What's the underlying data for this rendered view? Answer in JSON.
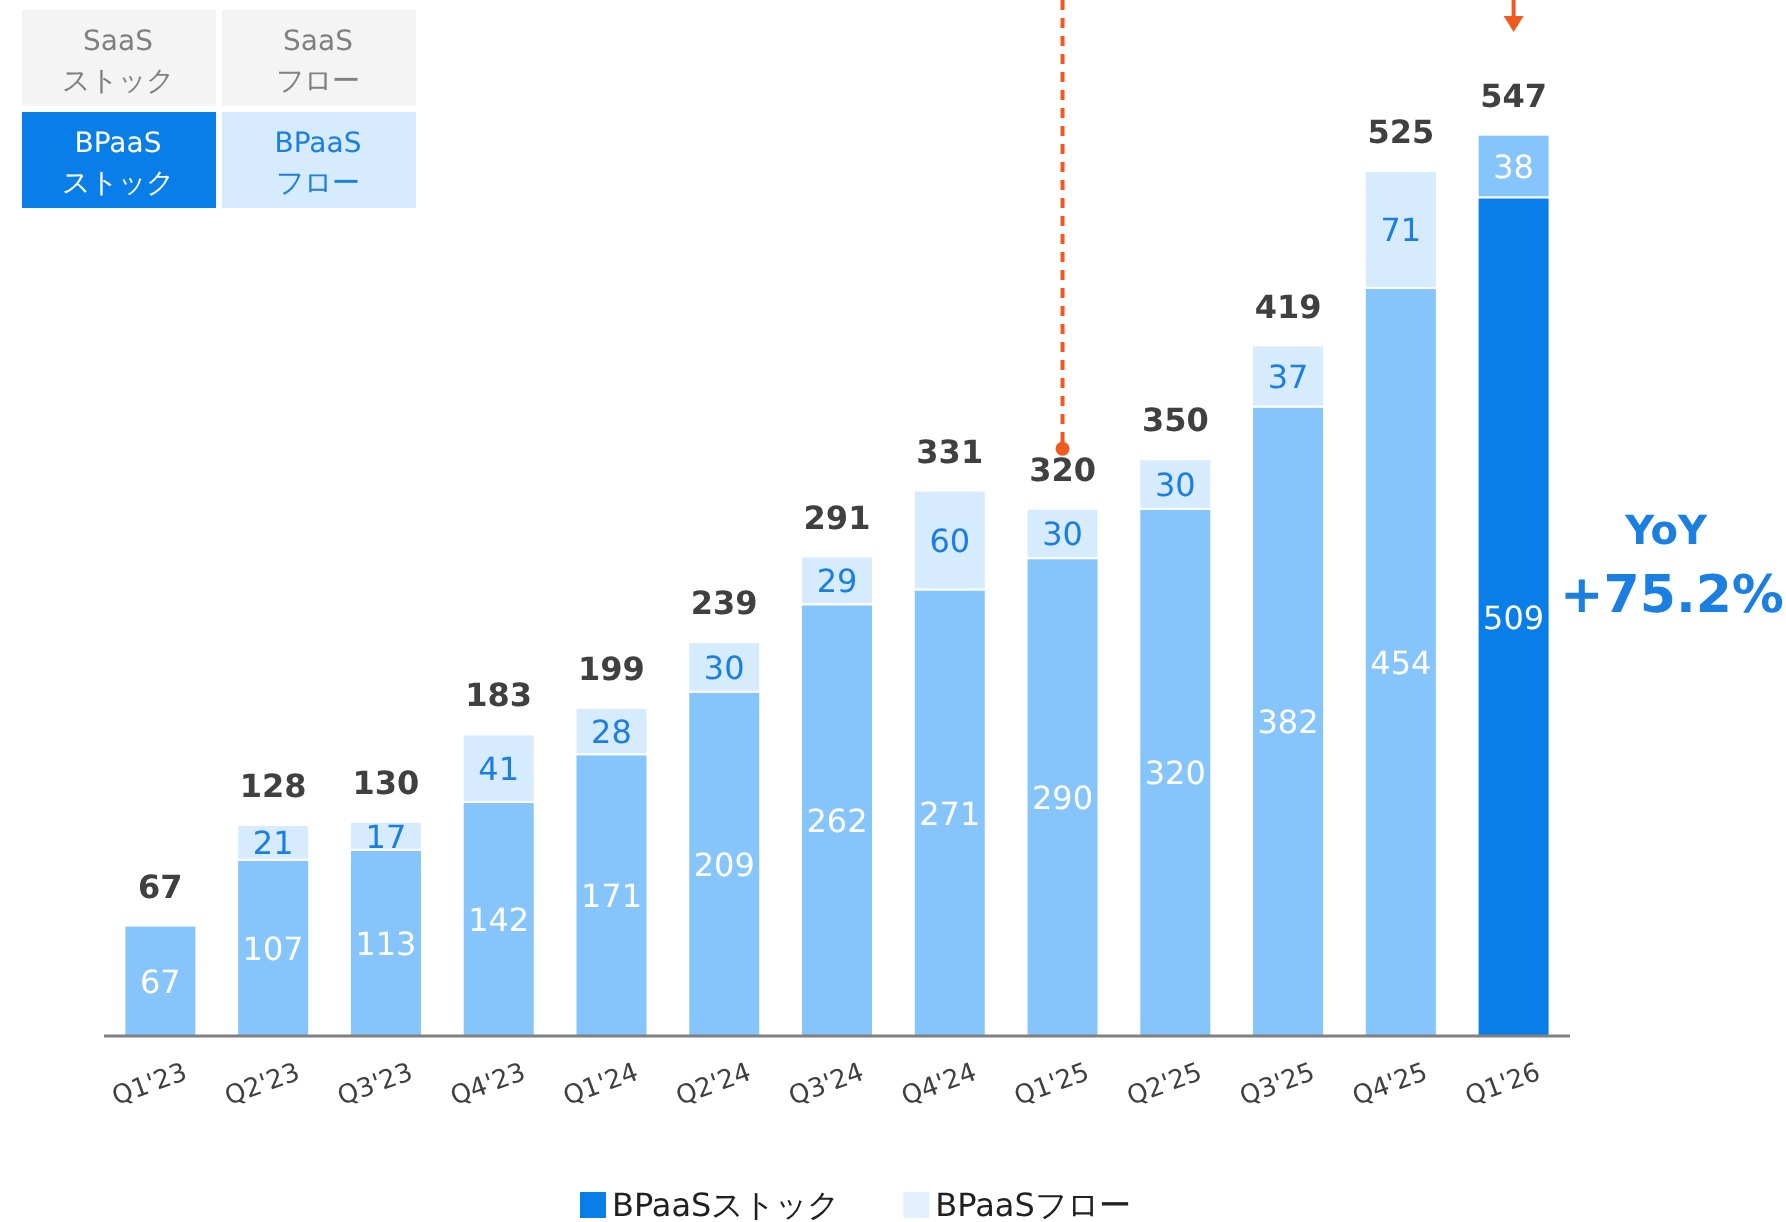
{
  "chart_data": {
    "type": "bar",
    "stacked": true,
    "categories": [
      "Q1'23",
      "Q2'23",
      "Q3'23",
      "Q4'23",
      "Q1'24",
      "Q2'24",
      "Q3'24",
      "Q4'24",
      "Q1'25",
      "Q2'25",
      "Q3'25",
      "Q4'25",
      "Q1'26"
    ],
    "series": [
      {
        "name": "BPaaSストック",
        "color": "#0a7ee8",
        "colors": [
          "#86c5fb",
          "#86c5fb",
          "#86c5fb",
          "#86c5fb",
          "#86c5fb",
          "#86c5fb",
          "#86c5fb",
          "#86c5fb",
          "#86c5fb",
          "#86c5fb",
          "#86c5fb",
          "#86c5fb",
          "#0a7ee8"
        ],
        "values": [
          67,
          107,
          113,
          142,
          171,
          209,
          262,
          271,
          290,
          320,
          382,
          454,
          509
        ]
      },
      {
        "name": "BPaaSフロー",
        "color": "#e3f1fe",
        "colors": [
          null,
          "#d6ebfd",
          "#d6ebfd",
          "#d6ebfd",
          "#d6ebfd",
          "#d6ebfd",
          "#d6ebfd",
          "#d6ebfd",
          "#d6ebfd",
          "#d6ebfd",
          "#d6ebfd",
          "#d6ebfd",
          "#86c5fb"
        ],
        "values": [
          null,
          21,
          17,
          41,
          28,
          30,
          29,
          60,
          30,
          30,
          37,
          71,
          38
        ]
      }
    ],
    "totals": [
      "67",
      "128",
      "130",
      "183",
      "199",
      "239",
      "291",
      "331",
      "320",
      "350",
      "419",
      "525",
      "547"
    ],
    "data_labels": true,
    "ref_lines": [
      {
        "axis": "x",
        "value": "Q1'25",
        "color": "#f05a1e",
        "line_style": "dashed"
      }
    ],
    "annotations": [
      "SaaS\nストック",
      "SaaS\nフロー",
      "BPaaS\nストック",
      "BPaaS\nフロー",
      "YoY",
      "+75.2%"
    ],
    "legend": "bottom"
  }
}
